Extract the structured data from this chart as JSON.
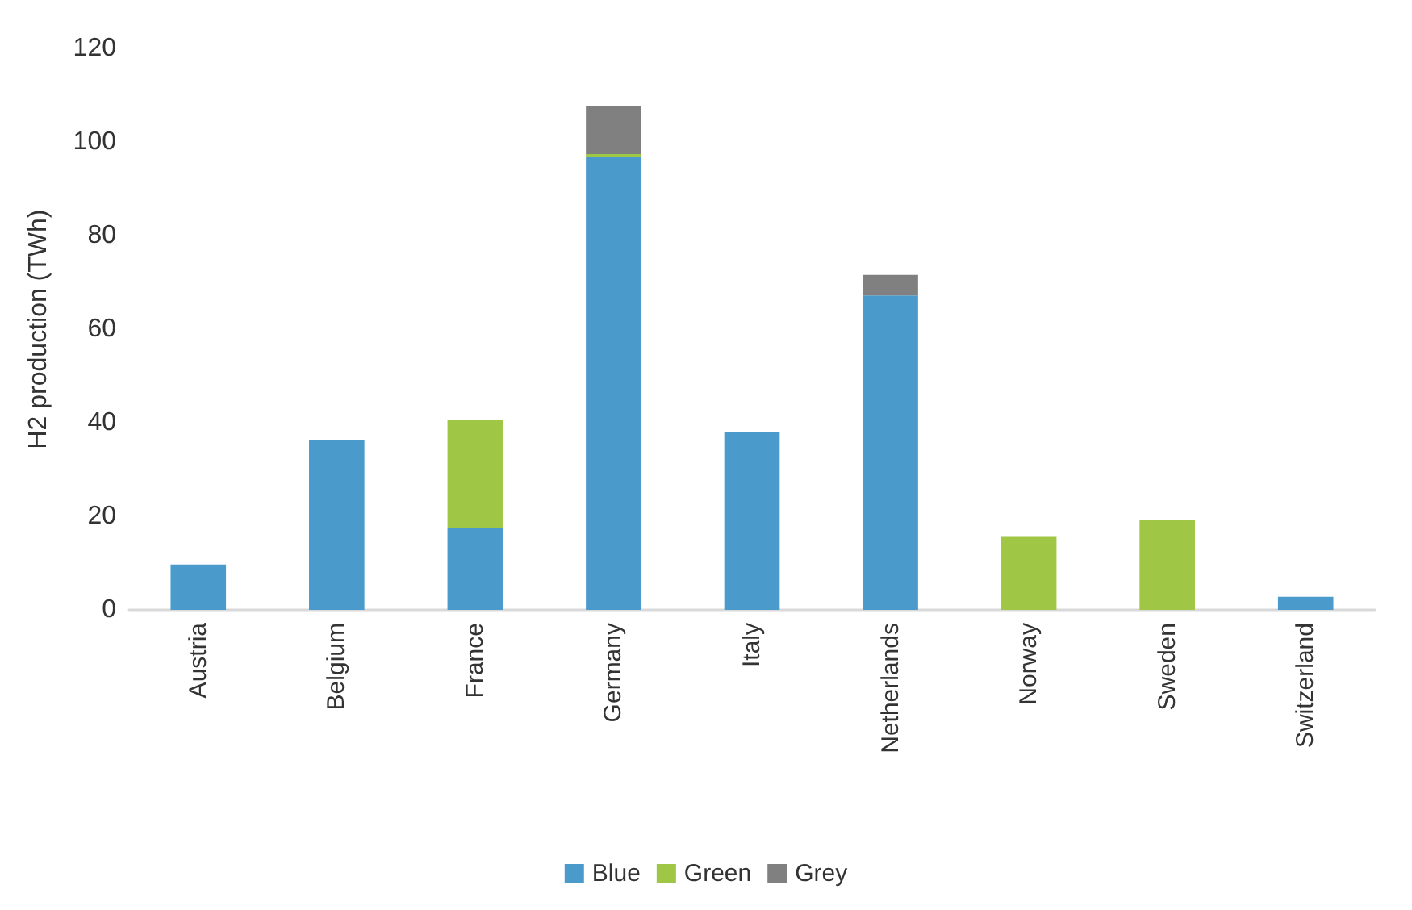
{
  "chart_data": {
    "type": "bar",
    "stacked": true,
    "ylabel": "H2 production (TWh)",
    "categories": [
      "Austria",
      "Belgium",
      "France",
      "Germany",
      "Italy",
      "Netherlands",
      "Norway",
      "Sweden",
      "Switzerland"
    ],
    "series": [
      {
        "name": "Blue",
        "color": "#4a9bcc",
        "values": [
          9.7,
          36.2,
          17.5,
          96.8,
          38.1,
          67.2,
          null,
          null,
          2.8
        ]
      },
      {
        "name": "Green",
        "color": "#9fc645",
        "values": [
          null,
          null,
          23.2,
          0.6,
          null,
          null,
          15.6,
          19.3,
          null
        ]
      },
      {
        "name": "Grey",
        "color": "#808080",
        "values": [
          null,
          null,
          null,
          10.2,
          null,
          4.4,
          null,
          null,
          null
        ]
      }
    ],
    "ylim": [
      0,
      120
    ],
    "yticks": [
      0,
      20,
      40,
      60,
      80,
      100,
      120
    ],
    "grid": false,
    "legend": "bottom"
  }
}
